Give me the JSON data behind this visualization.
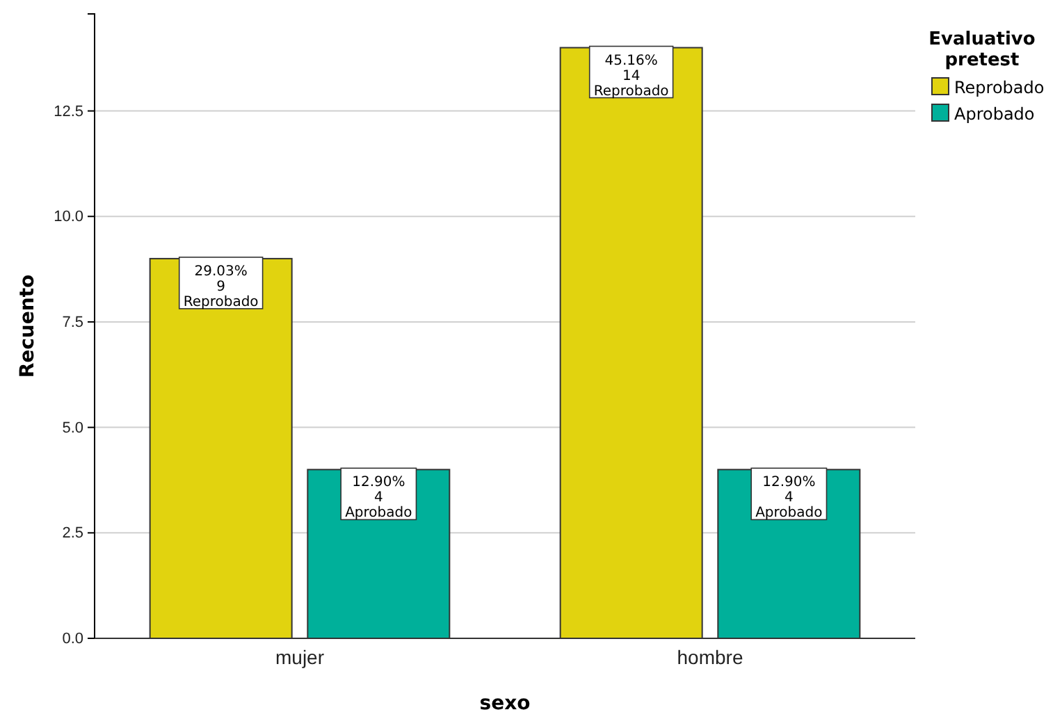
{
  "chart_data": {
    "type": "bar",
    "xlabel": "sexo",
    "ylabel": "Recuento",
    "legend_title": "Evaluativo pretest",
    "categories": [
      "mujer",
      "hombre"
    ],
    "series": [
      {
        "name": "Reprobado",
        "color": "#e1d30f",
        "values": [
          9,
          14
        ],
        "value_labels": [
          "29.03%\n9\nReprobado",
          "45.16%\n14\nReprobado"
        ]
      },
      {
        "name": "Aprobado",
        "color": "#00b09a",
        "values": [
          4,
          4
        ],
        "value_labels": [
          "12.90%\n4\nAprobado",
          "12.90%\n4\nAprobado"
        ]
      }
    ],
    "ylim": [
      0,
      14.8
    ],
    "yticks": [
      {
        "value": 0,
        "label": "0.0"
      },
      {
        "value": 2.5,
        "label": "2.5"
      },
      {
        "value": 5,
        "label": "5.0"
      },
      {
        "value": 7.5,
        "label": "7.5"
      },
      {
        "value": 10,
        "label": "10.0"
      },
      {
        "value": 12.5,
        "label": "12.5"
      }
    ],
    "grid": "y",
    "legend": "top right"
  }
}
